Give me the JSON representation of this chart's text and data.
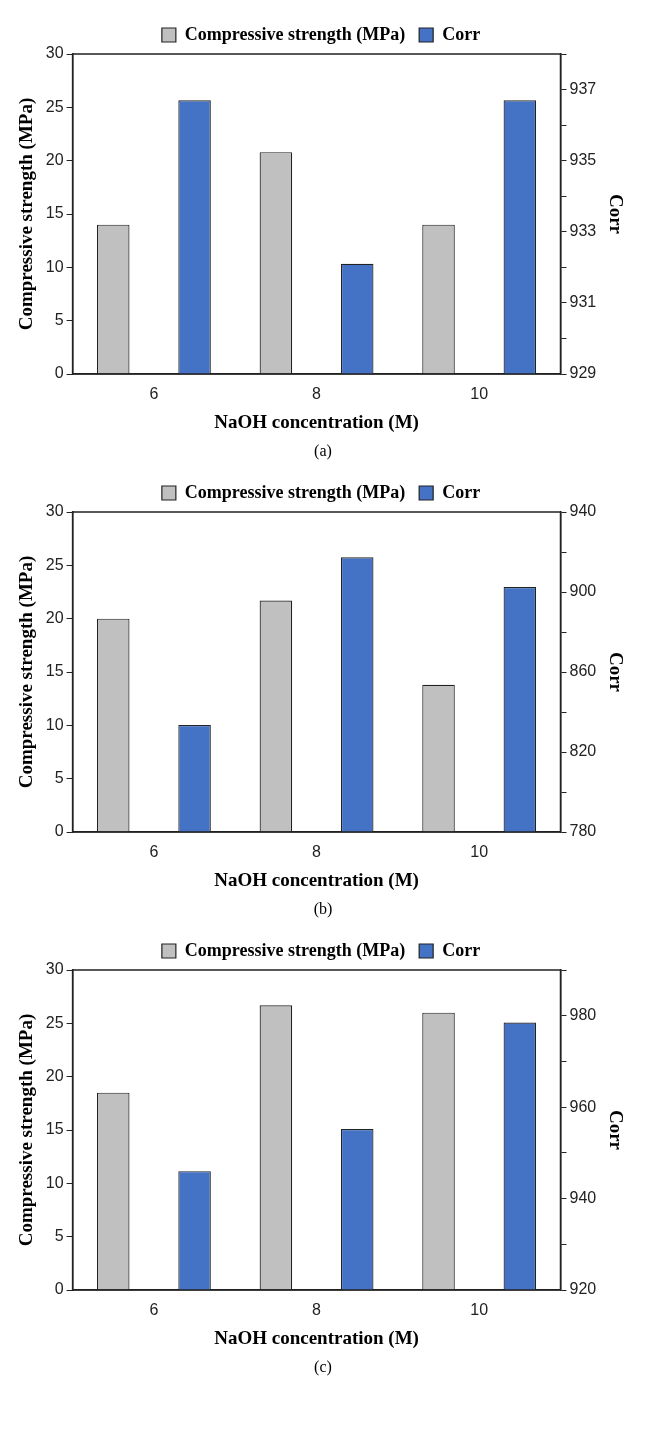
{
  "chart_data": [
    {
      "type": "bar",
      "categories": [
        "6",
        "8",
        "10"
      ],
      "xlabel": "NaOH concentration (M)",
      "ylabel": "Compressive strength (MPa)",
      "y2label": "Corr",
      "ylim": [
        0,
        30
      ],
      "yticks": [
        0,
        5,
        10,
        15,
        20,
        25,
        30
      ],
      "y2lim": [
        929,
        938
      ],
      "y2ticks": [
        929,
        {
          "value": 930,
          "label": null
        },
        931,
        {
          "value": 932,
          "label": null
        },
        933,
        {
          "value": 934,
          "label": null
        },
        935,
        {
          "value": 936,
          "label": null
        },
        937,
        {
          "value": 938,
          "label": null
        }
      ],
      "legend": "top",
      "annotations": [
        "(a)"
      ],
      "series": [
        {
          "name": "Compressive strength (MPa)",
          "color": "#c0c0c0",
          "values": [
            14,
            20.8,
            14
          ]
        },
        {
          "name": "Corr",
          "color": "#4472c4",
          "axis": "y2",
          "values": [
            936.7,
            932.1,
            936.7
          ]
        }
      ]
    },
    {
      "type": "bar",
      "categories": [
        "6",
        "8",
        "10"
      ],
      "xlabel": "NaOH concentration (M)",
      "ylabel": "Compressive strength (MPa)",
      "y2label": "Corr",
      "ylim": [
        0,
        30
      ],
      "yticks": [
        0,
        5,
        10,
        15,
        20,
        25,
        30
      ],
      "y2lim": [
        780,
        940
      ],
      "y2ticks": [
        780,
        {
          "value": 800,
          "label": null
        },
        820,
        {
          "value": 840,
          "label": null
        },
        860,
        {
          "value": 880,
          "label": null
        },
        900,
        {
          "value": 920,
          "label": null
        },
        940
      ],
      "legend": "top",
      "annotations": [
        "(b)"
      ],
      "series": [
        {
          "name": "Compressive strength (MPa)",
          "color": "#c0c0c0",
          "values": [
            20,
            21.7,
            13.8
          ]
        },
        {
          "name": "Corr",
          "color": "#4472c4",
          "axis": "y2",
          "values": [
            833.5,
            917.4,
            902.5
          ]
        }
      ]
    },
    {
      "type": "bar",
      "categories": [
        "6",
        "8",
        "10"
      ],
      "xlabel": "NaOH concentration (M)",
      "ylabel": "Compressive strength (MPa)",
      "y2label": "Corr",
      "ylim": [
        0,
        30
      ],
      "yticks": [
        0,
        5,
        10,
        15,
        20,
        25,
        30
      ],
      "y2lim": [
        920,
        990
      ],
      "y2ticks": [
        920,
        {
          "value": 930,
          "label": null
        },
        940,
        {
          "value": 950,
          "label": null
        },
        960,
        {
          "value": 970,
          "label": null
        },
        980,
        {
          "value": 990,
          "label": null
        }
      ],
      "legend": "top",
      "annotations": [
        "(c)"
      ],
      "series": [
        {
          "name": "Compressive strength (MPa)",
          "color": "#c0c0c0",
          "values": [
            18.5,
            26.7,
            26
          ]
        },
        {
          "name": "Corr",
          "color": "#4472c4",
          "axis": "y2",
          "values": [
            946,
            955.2,
            978.5
          ]
        }
      ]
    }
  ]
}
